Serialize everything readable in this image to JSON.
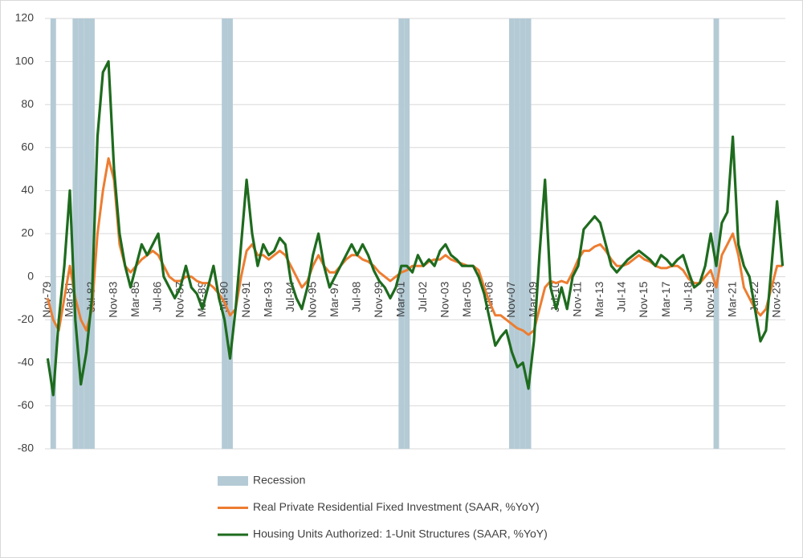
{
  "chart_data": {
    "type": "line",
    "categories": [
      "Nov-79",
      null,
      null,
      null,
      "Mar-81",
      null,
      null,
      null,
      "Jul-82",
      null,
      null,
      null,
      "Nov-83",
      null,
      null,
      null,
      "Mar-85",
      null,
      null,
      null,
      "Jul-86",
      null,
      null,
      null,
      "Nov-87",
      null,
      null,
      null,
      "Mar-89",
      null,
      null,
      null,
      "Jul-90",
      null,
      null,
      null,
      "Nov-91",
      null,
      null,
      null,
      "Mar-93",
      null,
      null,
      null,
      "Jul-94",
      null,
      null,
      null,
      "Nov-95",
      null,
      null,
      null,
      "Mar-97",
      null,
      null,
      null,
      "Jul-98",
      null,
      null,
      null,
      "Nov-99",
      null,
      null,
      null,
      "Mar-01",
      null,
      null,
      null,
      "Jul-02",
      null,
      null,
      null,
      "Nov-03",
      null,
      null,
      null,
      "Mar-05",
      null,
      null,
      null,
      "Jul-06",
      null,
      null,
      null,
      "Nov-07",
      null,
      null,
      null,
      "Mar-09",
      null,
      null,
      null,
      "Jul-10",
      null,
      null,
      null,
      "Nov-11",
      null,
      null,
      null,
      "Mar-13",
      null,
      null,
      null,
      "Jul-14",
      null,
      null,
      null,
      "Nov-15",
      null,
      null,
      null,
      "Mar-17",
      null,
      null,
      null,
      "Jul-18",
      null,
      null,
      null,
      "Nov-19",
      null,
      null,
      null,
      "Mar-21",
      null,
      null,
      null,
      "Jul-22",
      null,
      null,
      null,
      "Nov-23",
      null
    ],
    "series": [
      {
        "name": "Recession",
        "color": "#b4cbd6",
        "axis": "y2",
        "kind": "bar",
        "values": [
          0,
          1,
          0,
          0,
          0,
          1,
          1,
          1,
          1,
          0,
          0,
          0,
          0,
          0,
          0,
          0,
          0,
          0,
          0,
          0,
          0,
          0,
          0,
          0,
          0,
          0,
          0,
          0,
          0,
          0,
          0,
          0,
          1,
          1,
          0,
          0,
          0,
          0,
          0,
          0,
          0,
          0,
          0,
          0,
          0,
          0,
          0,
          0,
          0,
          0,
          0,
          0,
          0,
          0,
          0,
          0,
          0,
          0,
          0,
          0,
          0,
          0,
          0,
          0,
          1,
          1,
          0,
          0,
          0,
          0,
          0,
          0,
          0,
          0,
          0,
          0,
          0,
          0,
          0,
          0,
          0,
          0,
          0,
          0,
          1,
          1,
          1,
          1,
          0,
          0,
          0,
          0,
          0,
          0,
          0,
          0,
          0,
          0,
          0,
          0,
          0,
          0,
          0,
          0,
          0,
          0,
          0,
          0,
          0,
          0,
          0,
          0,
          0,
          0,
          0,
          0,
          0,
          0,
          0,
          0,
          0,
          1,
          0,
          0,
          0,
          0,
          0,
          0,
          0,
          0,
          0,
          0,
          0,
          0
        ]
      },
      {
        "name": "Real Private Residential Fixed Investment (SAAR, %YoY)",
        "color": "#ed7d31",
        "kind": "line",
        "values": [
          -10,
          -20,
          -25,
          -10,
          5,
          -10,
          -20,
          -25,
          -15,
          20,
          40,
          55,
          45,
          15,
          5,
          2,
          5,
          8,
          10,
          12,
          10,
          5,
          0,
          -2,
          -2,
          0,
          0,
          -2,
          -3,
          -3,
          -5,
          -8,
          -12,
          -18,
          -15,
          0,
          12,
          15,
          10,
          10,
          8,
          10,
          12,
          10,
          5,
          0,
          -5,
          -2,
          5,
          10,
          5,
          2,
          2,
          5,
          8,
          10,
          10,
          8,
          7,
          5,
          2,
          0,
          -2,
          0,
          2,
          3,
          5,
          5,
          5,
          7,
          8,
          8,
          10,
          8,
          7,
          6,
          5,
          5,
          3,
          -5,
          -12,
          -18,
          -18,
          -20,
          -22,
          -24,
          -25,
          -27,
          -25,
          -15,
          -5,
          -2,
          -3,
          -2,
          -3,
          2,
          8,
          12,
          12,
          14,
          15,
          12,
          8,
          5,
          5,
          6,
          8,
          10,
          8,
          7,
          5,
          4,
          4,
          5,
          5,
          3,
          -1,
          -3,
          -3,
          0,
          3,
          -5,
          10,
          15,
          20,
          10,
          -5,
          -10,
          -15,
          -18,
          -15,
          -5,
          5,
          5
        ]
      },
      {
        "name": "Housing Units Authorized: 1-Unit Structures (SAAR, %YoY)",
        "color": "#1e6b1e",
        "kind": "line",
        "values": [
          -38,
          -55,
          -20,
          5,
          40,
          -20,
          -50,
          -35,
          -10,
          65,
          95,
          100,
          50,
          20,
          5,
          -5,
          5,
          15,
          10,
          15,
          20,
          0,
          -5,
          -10,
          -5,
          5,
          -5,
          -8,
          -15,
          -5,
          5,
          -10,
          -20,
          -38,
          -15,
          15,
          45,
          20,
          5,
          15,
          10,
          12,
          18,
          15,
          -2,
          -10,
          -15,
          -5,
          10,
          20,
          5,
          -5,
          0,
          5,
          10,
          15,
          10,
          15,
          10,
          3,
          -2,
          -5,
          -10,
          -5,
          5,
          5,
          2,
          10,
          5,
          8,
          5,
          12,
          15,
          10,
          8,
          5,
          5,
          5,
          0,
          -8,
          -20,
          -32,
          -28,
          -25,
          -35,
          -42,
          -40,
          -52,
          -30,
          10,
          45,
          -5,
          -15,
          -5,
          -15,
          0,
          5,
          22,
          25,
          28,
          25,
          15,
          5,
          2,
          5,
          8,
          10,
          12,
          10,
          8,
          5,
          10,
          8,
          5,
          8,
          10,
          2,
          -5,
          -3,
          5,
          20,
          5,
          25,
          30,
          65,
          15,
          5,
          0,
          -15,
          -30,
          -25,
          5,
          35,
          5
        ]
      }
    ],
    "ylim": [
      -80,
      120
    ],
    "yticks": [
      -80,
      -60,
      -40,
      -20,
      0,
      20,
      40,
      60,
      80,
      100,
      120
    ],
    "y2lim": [
      0,
      1
    ],
    "grid": true,
    "legend": "bottom"
  }
}
